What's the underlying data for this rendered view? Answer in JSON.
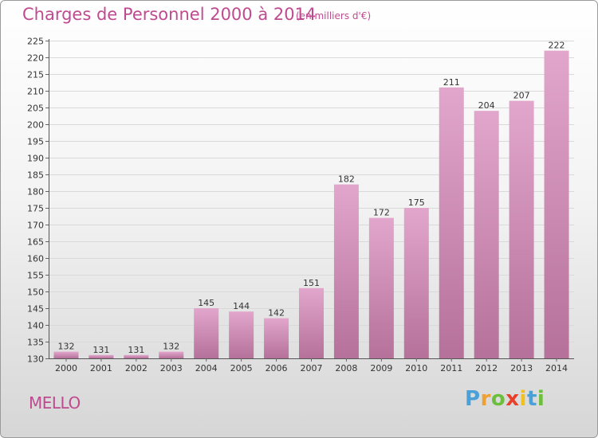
{
  "chart_data": {
    "type": "bar",
    "title": "Charges de Personnel 2000 à 2014",
    "subtitle": "(en milliers d'€)",
    "categories": [
      "2000",
      "2001",
      "2002",
      "2003",
      "2004",
      "2005",
      "2006",
      "2007",
      "2008",
      "2009",
      "2010",
      "2011",
      "2012",
      "2013",
      "2014"
    ],
    "values": [
      132,
      131,
      131,
      132,
      145,
      144,
      142,
      151,
      182,
      172,
      175,
      211,
      204,
      207,
      222
    ],
    "ylim": [
      130,
      225
    ],
    "ystep": 5,
    "grid": true,
    "bar_color_top": "#e2a6cc",
    "bar_color_bottom": "#b5719a",
    "xlabel": "",
    "ylabel": ""
  },
  "commune": "MELLO",
  "logo": {
    "letters": [
      "P",
      "r",
      "o",
      "x",
      "i",
      "t",
      "i"
    ],
    "colors": [
      "#4aa0d8",
      "#f0a030",
      "#6bbf3a",
      "#e8402a",
      "#f0c020",
      "#4aa0d8",
      "#6bbf3a"
    ]
  }
}
